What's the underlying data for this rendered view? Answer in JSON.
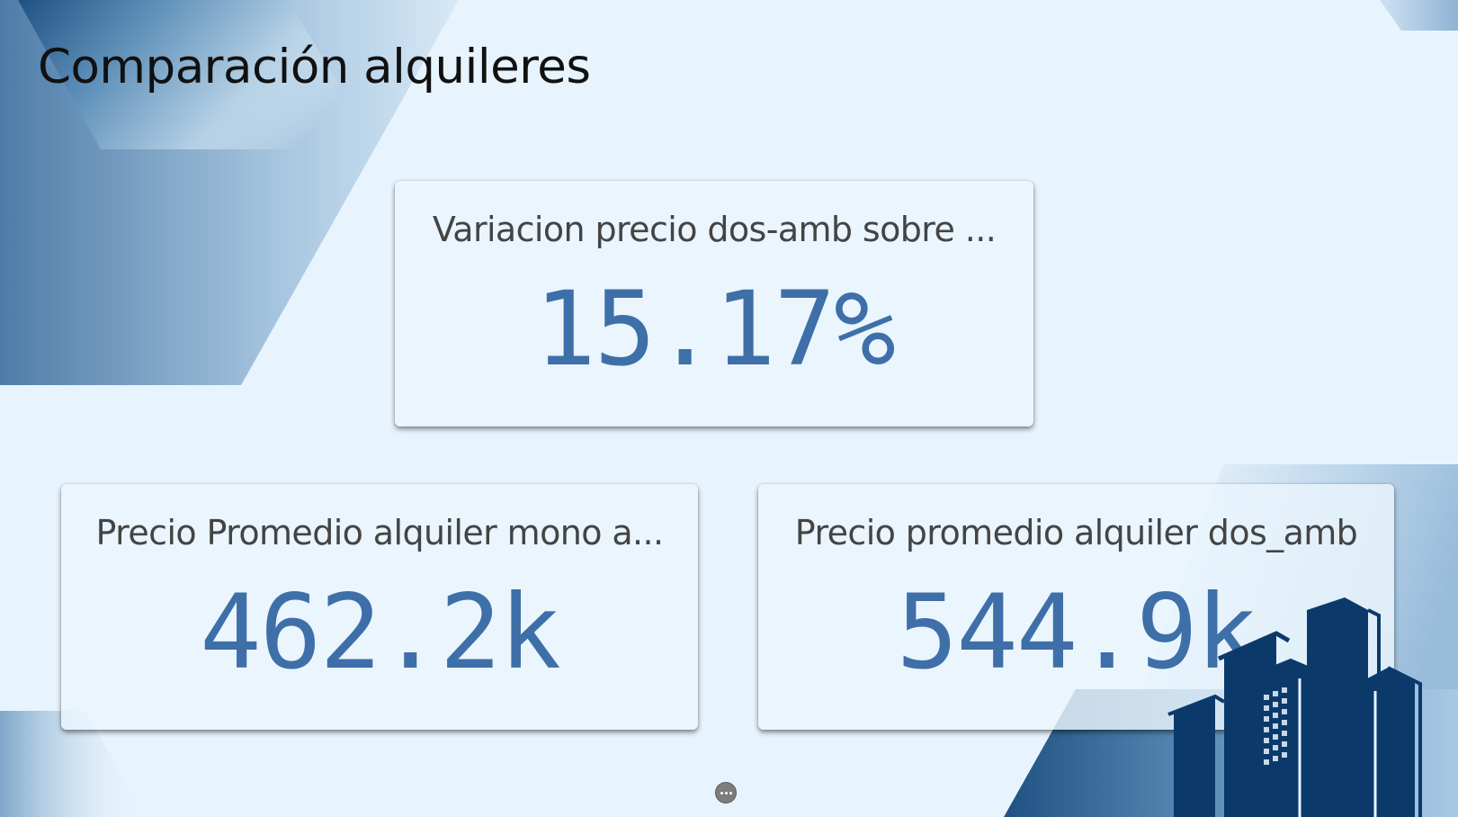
{
  "page": {
    "title": "Comparación alquileres"
  },
  "cards": {
    "top": {
      "label": "Variacion precio dos-amb sobre ...",
      "value": "15.17%"
    },
    "bottom_left": {
      "label": "Precio Promedio alquiler mono a...",
      "value": "462.2k"
    },
    "bottom_right": {
      "label": "Precio promedio alquiler dos_amb",
      "value": "544.9k"
    }
  },
  "icons": {
    "buildings": "city-buildings-icon",
    "more": "more-options-icon"
  },
  "colors": {
    "background": "#e8f4fd",
    "kpi_value": "#3e6fa8",
    "label": "#444444",
    "decor_dark": "#1e4d7e",
    "buildings": "#0b3a6a"
  }
}
